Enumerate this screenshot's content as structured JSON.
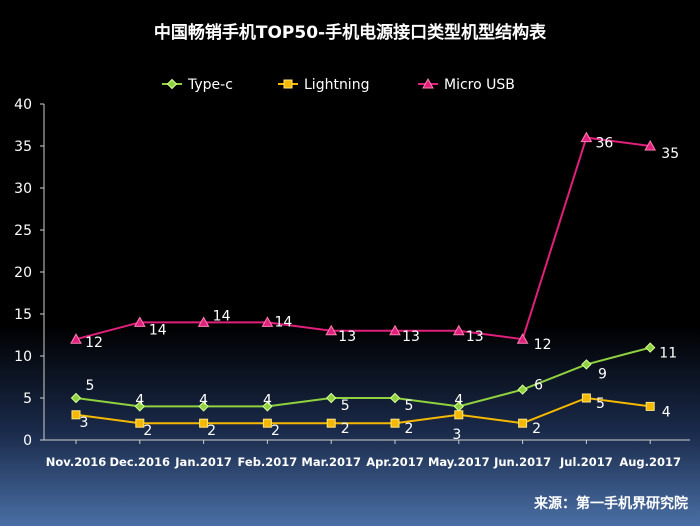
{
  "chart_data": {
    "type": "line",
    "title": "中国畅销手机TOP50-手机电源接口类型机型结构表",
    "categories": [
      "Nov.2016",
      "Dec.2016",
      "Jan.2017",
      "Feb.2017",
      "Mar.2017",
      "Apr.2017",
      "May.2017",
      "Jun.2017",
      "Jul.2017",
      "Aug.2017"
    ],
    "ylim": [
      0,
      40
    ],
    "yticks": [
      "0",
      "5",
      "10",
      "15",
      "20",
      "25",
      "30",
      "35",
      "40"
    ],
    "legend_position": "top",
    "grid": false,
    "series": [
      {
        "name": "Type-c",
        "values": [
          5,
          4,
          4,
          4,
          5,
          5,
          4,
          6,
          9,
          11
        ],
        "color": "#8fd13f",
        "marker": "diamond"
      },
      {
        "name": "Lightning",
        "values": [
          3,
          2,
          2,
          2,
          2,
          2,
          3,
          2,
          5,
          4
        ],
        "color": "#f5b800",
        "marker": "square"
      },
      {
        "name": "Micro USB",
        "values": [
          12,
          14,
          14,
          14,
          13,
          13,
          13,
          12,
          36,
          35
        ],
        "color": "#e0207a",
        "marker": "triangle"
      }
    ],
    "source": "来源：第一手机界研究院"
  }
}
